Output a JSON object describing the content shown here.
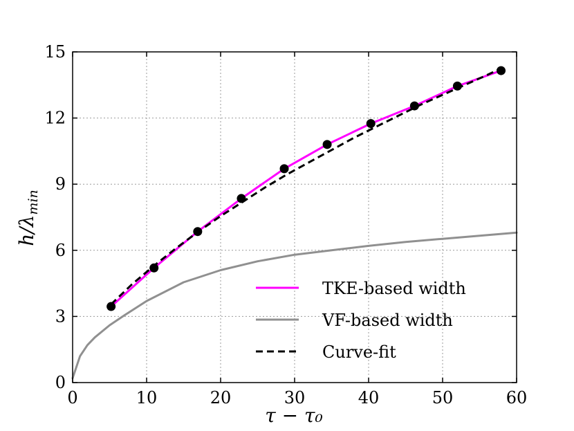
{
  "chart_data": {
    "type": "line",
    "title": "",
    "xlabel": "τ − τ₀",
    "ylabel_main": "h/λ",
    "ylabel_sub": "min",
    "xlim": [
      0,
      60
    ],
    "ylim": [
      0,
      15
    ],
    "xticks": [
      0,
      10,
      20,
      30,
      40,
      50,
      60
    ],
    "yticks": [
      0,
      3,
      6,
      9,
      12,
      15
    ],
    "grid": true,
    "legend_position": "lower-right",
    "series": [
      {
        "name": "TKE-based width",
        "color": "#ff00ff",
        "style": "solid",
        "x": [
          5.2,
          11.0,
          16.9,
          22.8,
          28.6,
          34.4,
          40.3,
          46.2,
          52.0,
          57.9
        ],
        "y": [
          3.45,
          5.2,
          6.85,
          8.35,
          9.7,
          10.8,
          11.75,
          12.55,
          13.45,
          14.15
        ]
      },
      {
        "name": "VF-based width",
        "color": "#909090",
        "style": "solid",
        "x": [
          0,
          1,
          2,
          3,
          5,
          7,
          10,
          15,
          20,
          25,
          30,
          35,
          40,
          45,
          50,
          55,
          60
        ],
        "y": [
          0.2,
          1.2,
          1.7,
          2.05,
          2.6,
          3.05,
          3.7,
          4.55,
          5.1,
          5.5,
          5.8,
          6.0,
          6.2,
          6.38,
          6.52,
          6.66,
          6.8
        ]
      },
      {
        "name": "Curve-fit",
        "color": "#000000",
        "style": "dashed",
        "x": [
          5.2,
          8,
          11,
          14,
          17,
          20,
          23,
          26,
          29,
          32,
          35,
          38,
          41,
          44,
          47,
          50,
          53,
          56,
          58.5
        ],
        "y": [
          3.55,
          4.45,
          5.3,
          6.1,
          6.85,
          7.55,
          8.2,
          8.85,
          9.45,
          10.0,
          10.55,
          11.1,
          11.6,
          12.1,
          12.6,
          13.05,
          13.5,
          13.95,
          14.35
        ]
      }
    ],
    "markers": {
      "color": "#000000",
      "x": [
        5.2,
        11.0,
        16.9,
        22.8,
        28.6,
        34.4,
        40.3,
        46.2,
        52.0,
        57.9
      ],
      "y": [
        3.45,
        5.2,
        6.85,
        8.35,
        9.7,
        10.8,
        11.75,
        12.55,
        13.45,
        14.15
      ]
    }
  }
}
